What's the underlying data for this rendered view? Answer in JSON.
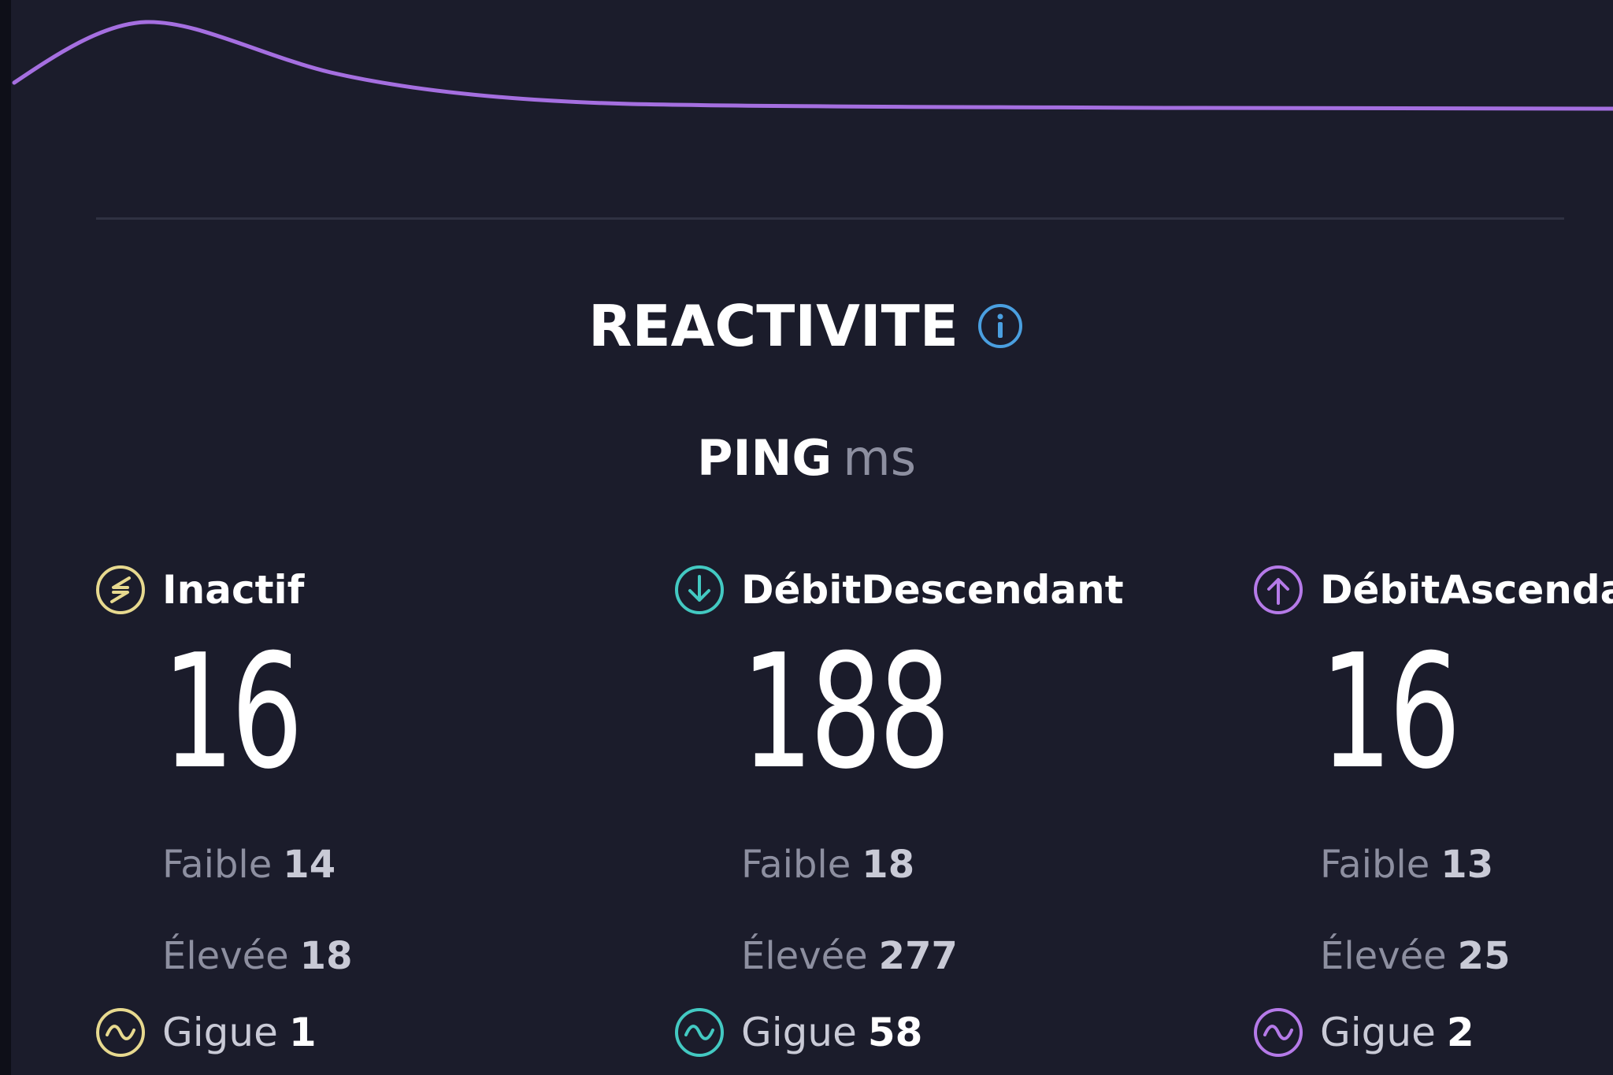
{
  "header": {
    "section_title": "REACTIVITE",
    "ping_label": "PING",
    "ping_unit": "ms"
  },
  "colors": {
    "background": "#1b1c2b",
    "graph_line": "#a56fe0",
    "info_icon": "#4a9fe0",
    "idle": "#e7d98f",
    "download": "#43c9c2",
    "upload": "#b57ae8"
  },
  "metrics": [
    {
      "key": "idle",
      "icon": "idle-arrows-icon",
      "label": "Inactif",
      "value": "16",
      "low_label": "Faible",
      "low_value": "14",
      "high_label": "Élevée",
      "high_value": "18",
      "jitter_label": "Gigue",
      "jitter_value": "1"
    },
    {
      "key": "download",
      "icon": "download-arrow-icon",
      "label": "DébitDescendant",
      "value": "188",
      "low_label": "Faible",
      "low_value": "18",
      "high_label": "Élevée",
      "high_value": "277",
      "jitter_label": "Gigue",
      "jitter_value": "58"
    },
    {
      "key": "upload",
      "icon": "upload-arrow-icon",
      "label": "DébitAscendant",
      "value": "16",
      "low_label": "Faible",
      "low_value": "13",
      "high_label": "Élevée",
      "high_value": "25",
      "jitter_label": "Gigue",
      "jitter_value": "2"
    }
  ]
}
